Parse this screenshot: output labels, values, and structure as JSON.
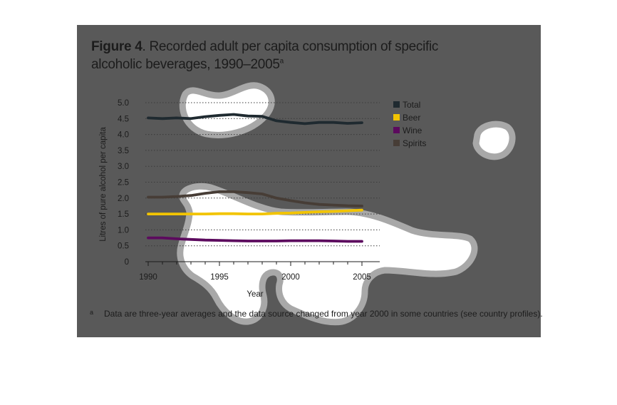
{
  "figure": {
    "label": "Figure 4",
    "title_rest": ". Recorded adult per capita consumption of specific alcoholic beverages, 1990–2005",
    "title_superscript": "a"
  },
  "footnote": {
    "mark": "a",
    "text": "Data are three-year averages and the data source changed from year 2000 in some countries (see country profiles)."
  },
  "colors": {
    "panel": "#595959",
    "grid": "#3a3a3a",
    "axis": "#1c1c1c",
    "blob": "#ffffff",
    "blob_halo": "#a8a8a8"
  },
  "chart_data": {
    "type": "line",
    "title": "Recorded adult per capita consumption of specific alcoholic beverages, 1990–2005",
    "xlabel": "Year",
    "ylabel": "Litres of pure alcohol per capita",
    "xlim": [
      1990,
      2005
    ],
    "ylim": [
      0,
      5.0
    ],
    "x_ticks": [
      1990,
      1995,
      2000,
      2005
    ],
    "y_ticks": [
      0,
      0.5,
      1.0,
      1.5,
      2.0,
      2.5,
      3.0,
      3.5,
      4.0,
      4.5,
      5.0
    ],
    "y_tick_labels": [
      "0",
      "0.5",
      "1.0",
      "1.5",
      "2.0",
      "2.5",
      "3.0",
      "3.5",
      "4.0",
      "4.5",
      "5.0"
    ],
    "grid": "horizontal dotted",
    "legend_position": "right",
    "x": [
      1990,
      1991,
      1992,
      1993,
      1994,
      1995,
      1996,
      1997,
      1998,
      1999,
      2000,
      2001,
      2002,
      2003,
      2004,
      2005
    ],
    "series": [
      {
        "name": "Total",
        "color": "#1f2a30",
        "values": [
          4.52,
          4.5,
          4.52,
          4.5,
          4.56,
          4.6,
          4.63,
          4.58,
          4.57,
          4.43,
          4.38,
          4.34,
          4.38,
          4.38,
          4.35,
          4.37
        ]
      },
      {
        "name": "Beer",
        "color": "#f2c400",
        "values": [
          1.5,
          1.5,
          1.5,
          1.5,
          1.5,
          1.51,
          1.51,
          1.5,
          1.5,
          1.52,
          1.53,
          1.55,
          1.57,
          1.58,
          1.6,
          1.62
        ]
      },
      {
        "name": "Wine",
        "color": "#5c0a5e",
        "values": [
          0.75,
          0.75,
          0.72,
          0.7,
          0.68,
          0.67,
          0.66,
          0.65,
          0.65,
          0.65,
          0.66,
          0.66,
          0.66,
          0.65,
          0.64,
          0.64
        ]
      },
      {
        "name": "Spirits",
        "color": "#473d36",
        "values": [
          2.03,
          2.03,
          2.05,
          2.08,
          2.15,
          2.2,
          2.2,
          2.17,
          2.13,
          2.0,
          1.92,
          1.85,
          1.8,
          1.78,
          1.76,
          1.75
        ]
      }
    ]
  }
}
